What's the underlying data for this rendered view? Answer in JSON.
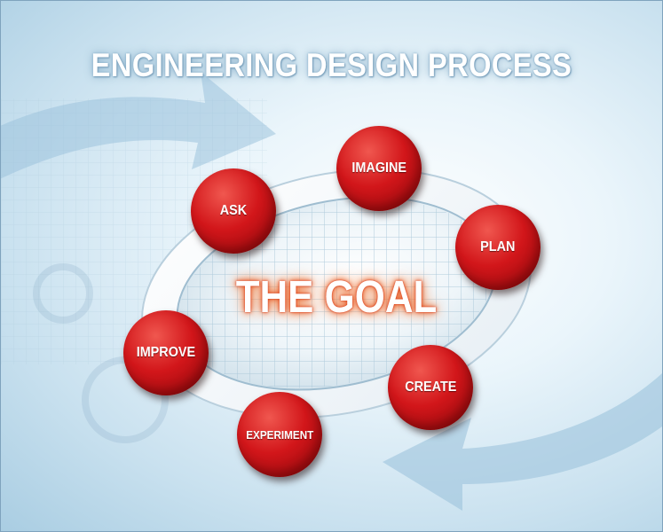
{
  "title": "ENGINEERING DESIGN PROCESS",
  "center": "THE GOAL",
  "steps": [
    {
      "label": "IMAGINE"
    },
    {
      "label": "PLAN"
    },
    {
      "label": "CREATE"
    },
    {
      "label": "EXPERIMENT"
    },
    {
      "label": "IMPROVE"
    },
    {
      "label": "ASK"
    }
  ],
  "colors": {
    "step_red": "#d2161a",
    "ring_white": "#ffffff",
    "background_blue": "#c9e1ef",
    "goal_glow": "#e04b1d"
  }
}
